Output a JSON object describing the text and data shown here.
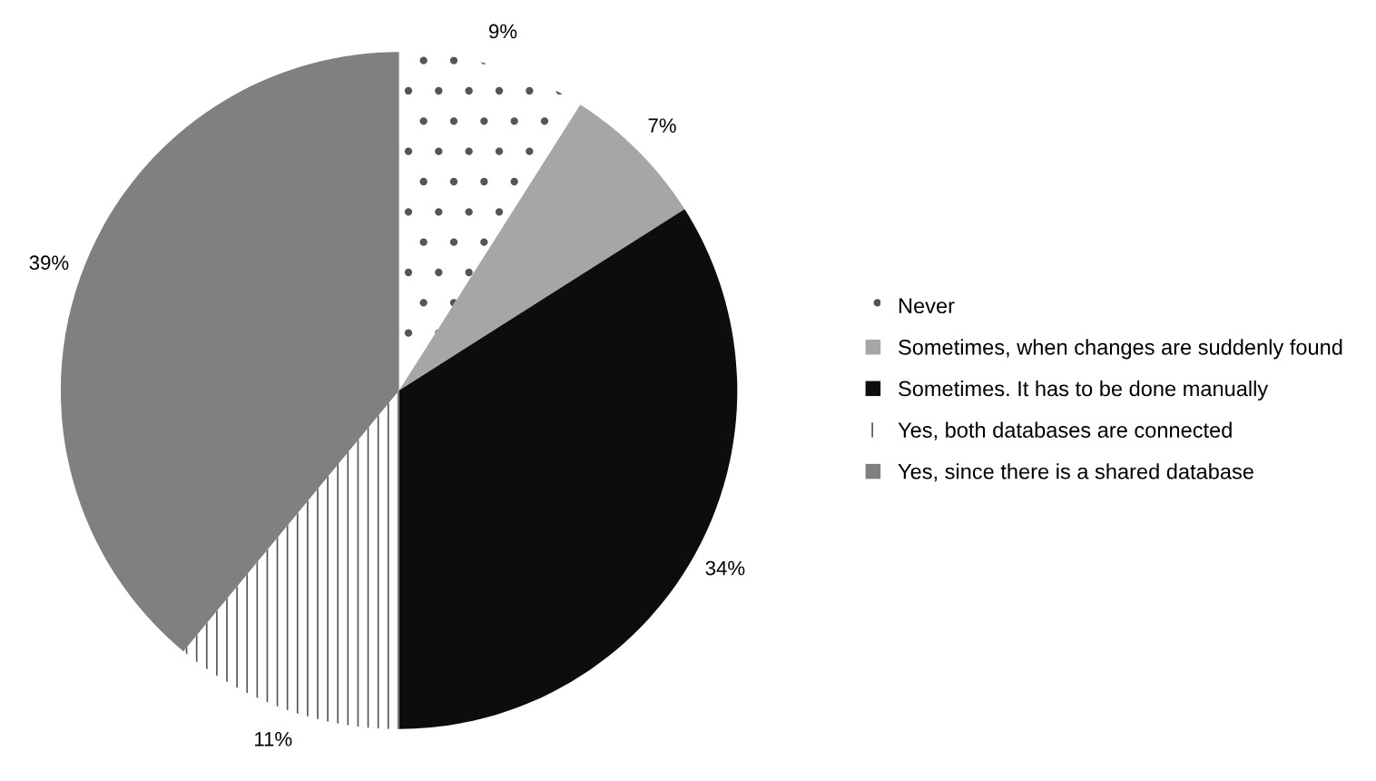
{
  "chart_data": {
    "type": "pie",
    "categories": [
      "Never",
      "Sometimes, when changes are suddenly found",
      "Sometimes. It has to be done manually",
      "Yes, both databases are connected",
      "Yes, since there is a shared database"
    ],
    "values": [
      9,
      7,
      34,
      11,
      39
    ],
    "value_labels": [
      "9%",
      "7%",
      "34%",
      "11%",
      "39%"
    ],
    "colors": [
      "#ffffff",
      "#a6a6a6",
      "#0d0d0d",
      "#ffffff",
      "#808080"
    ],
    "legend": "right"
  }
}
